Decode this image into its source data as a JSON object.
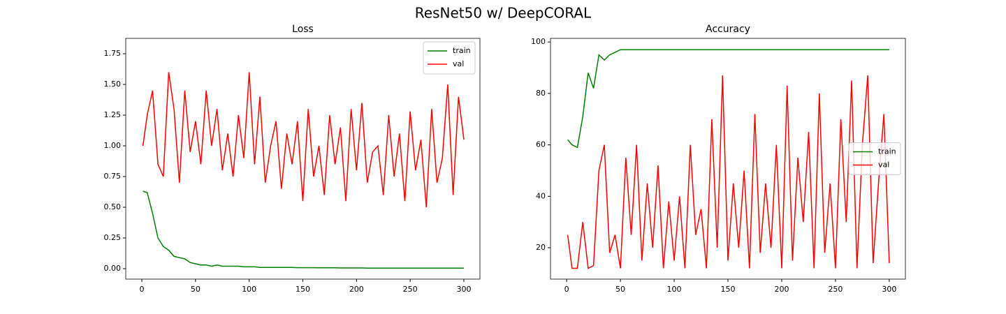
{
  "title": "ResNet50 w/ DeepCORAL",
  "chart_data": [
    {
      "type": "line",
      "title": "Loss",
      "legend": "upper right",
      "x": [
        1,
        5,
        10,
        15,
        20,
        25,
        30,
        35,
        40,
        45,
        50,
        55,
        60,
        65,
        70,
        75,
        80,
        85,
        90,
        95,
        100,
        105,
        110,
        115,
        120,
        125,
        130,
        135,
        140,
        145,
        150,
        155,
        160,
        165,
        170,
        175,
        180,
        185,
        190,
        195,
        200,
        205,
        210,
        215,
        220,
        225,
        230,
        235,
        240,
        245,
        250,
        255,
        260,
        265,
        270,
        275,
        280,
        285,
        290,
        295,
        300
      ],
      "series": [
        {
          "name": "train",
          "color": "#008000",
          "values": [
            0.63,
            0.62,
            0.45,
            0.25,
            0.18,
            0.15,
            0.1,
            0.09,
            0.08,
            0.05,
            0.04,
            0.03,
            0.03,
            0.02,
            0.03,
            0.02,
            0.02,
            0.02,
            0.02,
            0.015,
            0.015,
            0.015,
            0.01,
            0.01,
            0.01,
            0.01,
            0.01,
            0.01,
            0.01,
            0.008,
            0.008,
            0.008,
            0.008,
            0.007,
            0.007,
            0.007,
            0.007,
            0.006,
            0.006,
            0.006,
            0.006,
            0.006,
            0.005,
            0.005,
            0.005,
            0.005,
            0.005,
            0.005,
            0.005,
            0.005,
            0.005,
            0.004,
            0.004,
            0.004,
            0.004,
            0.004,
            0.004,
            0.004,
            0.004,
            0.004,
            0.004
          ]
        },
        {
          "name": "val",
          "color": "#ff0000",
          "values": [
            1.0,
            1.25,
            1.45,
            0.85,
            0.75,
            1.6,
            1.3,
            0.7,
            1.45,
            0.95,
            1.2,
            0.85,
            1.45,
            1.0,
            1.3,
            0.8,
            1.1,
            0.75,
            1.25,
            0.9,
            1.6,
            0.85,
            1.4,
            0.7,
            1.0,
            1.2,
            0.65,
            1.1,
            0.85,
            1.2,
            0.55,
            1.3,
            0.75,
            1.0,
            0.6,
            1.25,
            0.85,
            1.15,
            0.55,
            1.3,
            0.8,
            1.35,
            0.7,
            0.95,
            1.0,
            0.6,
            1.25,
            0.75,
            1.1,
            0.55,
            1.28,
            0.8,
            1.05,
            0.5,
            1.3,
            0.7,
            0.9,
            1.5,
            0.6,
            1.4,
            1.05
          ]
        }
      ],
      "xlim": [
        -15,
        315
      ],
      "xticks": [
        0,
        50,
        100,
        150,
        200,
        250,
        300
      ],
      "ylim": [
        -0.085,
        1.875
      ],
      "yticks": [
        {
          "value": 0,
          "label": "0.00"
        },
        {
          "value": 0.25,
          "label": "0.25"
        },
        {
          "value": 0.5,
          "label": "0.50"
        },
        {
          "value": 0.75,
          "label": "0.75"
        },
        {
          "value": 1,
          "label": "1.00"
        },
        {
          "value": 1.25,
          "label": "1.25"
        },
        {
          "value": 1.5,
          "label": "1.50"
        },
        {
          "value": 1.75,
          "label": "1.75"
        }
      ]
    },
    {
      "type": "line",
      "title": "Accuracy",
      "legend": "center right",
      "x": [
        1,
        5,
        10,
        15,
        20,
        25,
        30,
        35,
        40,
        45,
        50,
        55,
        60,
        65,
        70,
        75,
        80,
        85,
        90,
        95,
        100,
        105,
        110,
        115,
        120,
        125,
        130,
        135,
        140,
        145,
        150,
        155,
        160,
        165,
        170,
        175,
        180,
        185,
        190,
        195,
        200,
        205,
        210,
        215,
        220,
        225,
        230,
        235,
        240,
        245,
        250,
        255,
        260,
        265,
        270,
        275,
        280,
        285,
        290,
        295,
        300
      ],
      "series": [
        {
          "name": "train",
          "color": "#008000",
          "values": [
            62,
            60,
            59,
            71,
            88,
            82,
            95,
            93,
            95,
            96,
            97,
            97,
            97,
            97,
            97,
            97,
            97,
            97,
            97,
            97,
            97,
            97,
            97,
            97,
            97,
            97,
            97,
            97,
            97,
            97,
            97,
            97,
            97,
            97,
            97,
            97,
            97,
            97,
            97,
            97,
            97,
            97,
            97,
            97,
            97,
            97,
            97,
            97,
            97,
            97,
            97,
            97,
            97,
            97,
            97,
            97,
            97,
            97,
            97,
            97,
            97
          ]
        },
        {
          "name": "val",
          "color": "#ff0000",
          "values": [
            25,
            12,
            12,
            30,
            12,
            13,
            50,
            60,
            18,
            25,
            12,
            55,
            25,
            60,
            15,
            45,
            20,
            52,
            12,
            38,
            15,
            40,
            12,
            60,
            25,
            35,
            12,
            70,
            20,
            87,
            15,
            45,
            20,
            50,
            12,
            72,
            18,
            45,
            20,
            60,
            12,
            83,
            15,
            55,
            30,
            65,
            12,
            80,
            18,
            45,
            12,
            70,
            30,
            85,
            12,
            60,
            87,
            14,
            45,
            72,
            14
          ]
        }
      ],
      "xlim": [
        -15,
        315
      ],
      "xticks": [
        0,
        50,
        100,
        150,
        200,
        250,
        300
      ],
      "ylim": [
        7.8,
        101.4
      ],
      "yticks": [
        20,
        40,
        60,
        80,
        100
      ]
    }
  ]
}
